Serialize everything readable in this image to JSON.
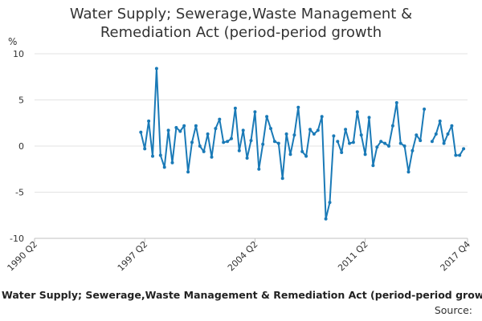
{
  "chart_data": {
    "type": "line",
    "title_line1": "Water Supply; Sewerage,Waste Management &",
    "title_line2": "Remediation Act (period-period growth",
    "ylabel": "%",
    "ylim": [
      -10,
      10
    ],
    "yticks": [
      "10",
      "5",
      "0",
      "-5",
      "-10"
    ],
    "ytick_values": [
      10,
      5,
      0,
      -5,
      -10
    ],
    "xlim": [
      1990.25,
      2017.75
    ],
    "xtick_labels": [
      "1990 Q2",
      "1997 Q2",
      "2004 Q2",
      "2011 Q2",
      "2017 Q4"
    ],
    "xtick_values": [
      1990.25,
      1997.25,
      2004.25,
      2011.25,
      2017.75
    ],
    "grid": true,
    "series": [
      {
        "name": "Water Supply; Sewerage,Waste Management & Remediation Act (period-period grow",
        "color": "#1a7ab7",
        "segments": [
          {
            "x_start": 1997.0,
            "step": 0.25,
            "values": [
              1.5,
              -0.3,
              2.7,
              -1.1,
              8.4,
              -1.0,
              -2.3,
              1.7,
              -1.8,
              2.0,
              1.6,
              2.2,
              -2.8,
              0.4,
              2.2,
              0.0,
              -0.6,
              1.3,
              -1.2,
              1.9,
              2.9,
              0.4,
              0.5,
              0.8,
              4.1,
              -0.5,
              1.7,
              -1.3,
              0.6,
              3.7,
              -2.5,
              0.2,
              3.2,
              1.9,
              0.5,
              0.3,
              -3.5,
              1.3,
              -0.9,
              1.2,
              4.2,
              -0.6,
              -1.1,
              1.8,
              1.3,
              1.7,
              3.2,
              -7.9,
              -6.1,
              1.1
            ]
          },
          {
            "x_start": 2009.5,
            "step": 0.25,
            "values": [
              0.5,
              -0.7,
              1.8,
              0.3,
              0.4,
              3.7,
              1.2,
              -0.9,
              3.1,
              -2.1,
              -0.1,
              0.5,
              0.3,
              0.0,
              2.2,
              4.7,
              0.3,
              0.0,
              -2.8,
              -0.5,
              1.2,
              0.6,
              4.0
            ]
          },
          {
            "x_start": 2015.5,
            "step": 0.25,
            "values": [
              0.5,
              1.3,
              2.7,
              0.3,
              1.3,
              2.2,
              -1.0,
              -1.0,
              -0.3
            ]
          }
        ]
      }
    ]
  },
  "footer": {
    "legend_label": "Water Supply; Sewerage,Waste Management & Remediation Act (period-period grow",
    "source_label": "Source:"
  }
}
